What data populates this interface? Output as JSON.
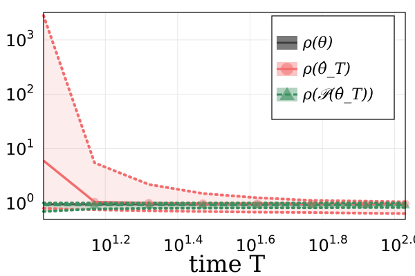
{
  "chart_data": {
    "type": "line",
    "title": "",
    "xlabel": "time T",
    "ylabel": "",
    "x_scale": "log10",
    "y_scale": "log10",
    "xlim": [
      10.7,
      107
    ],
    "ylim": [
      0.5,
      3200
    ],
    "x_tick_exponents": [
      "1.2",
      "1.4",
      "1.6",
      "1.8",
      "2.0"
    ],
    "x_tick_values": [
      15.85,
      25.12,
      39.81,
      63.1,
      100
    ],
    "y_tick_exponents": [
      "0",
      "1",
      "2",
      "3"
    ],
    "y_tick_values": [
      1,
      10,
      100,
      1000
    ],
    "grid": true,
    "legend_position": "top-right",
    "series": [
      {
        "name": "ρ(θ)",
        "color": "#404040",
        "marker": "none",
        "x": [
          10.7,
          107
        ],
        "values": [
          0.95,
          0.95
        ],
        "band_lower": [
          0.88,
          0.88
        ],
        "band_upper": [
          1.0,
          1.0
        ]
      },
      {
        "name": "ρ(θ̂_T)",
        "color": "#f26d6d",
        "marker": "circle",
        "x": [
          10.7,
          14.8,
          20.9,
          29.5,
          41.7,
          58.9,
          83.2,
          107
        ],
        "values": [
          6.0,
          1.05,
          1.0,
          0.98,
          0.98,
          0.97,
          0.97,
          0.97
        ],
        "band_lower": [
          0.8,
          0.75,
          0.72,
          0.7,
          0.68,
          0.67,
          0.65,
          0.64
        ],
        "band_upper": [
          2800,
          5.5,
          2.2,
          1.5,
          1.25,
          1.12,
          1.08,
          1.05
        ]
      },
      {
        "name": "ρ(𝒫(θ̂_T))",
        "color": "#3b8f5f",
        "marker": "triangle",
        "x": [
          10.7,
          14.8,
          20.9,
          29.5,
          41.7,
          58.9,
          83.2,
          107
        ],
        "values": [
          0.92,
          0.92,
          0.92,
          0.92,
          0.92,
          0.92,
          0.92,
          0.92
        ],
        "band_lower": [
          0.7,
          0.78,
          0.8,
          0.81,
          0.82,
          0.82,
          0.83,
          0.83
        ],
        "band_upper": [
          1.0,
          1.0,
          1.0,
          1.0,
          1.0,
          1.0,
          1.0,
          1.0
        ]
      }
    ]
  }
}
